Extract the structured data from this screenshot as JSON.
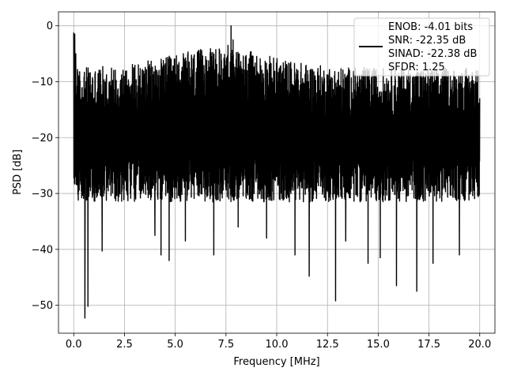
{
  "chart_data": {
    "type": "line",
    "title": "",
    "xlabel": "Frequency [MHz]",
    "ylabel": "PSD [dB]",
    "xlim": [
      -0.75,
      20.75
    ],
    "ylim": [
      -55,
      2.5
    ],
    "xticks": [
      0.0,
      2.5,
      5.0,
      7.5,
      10.0,
      12.5,
      15.0,
      17.5,
      20.0
    ],
    "xtick_labels": [
      "0.0",
      "2.5",
      "5.0",
      "7.5",
      "10.0",
      "12.5",
      "15.0",
      "17.5",
      "20.0"
    ],
    "yticks": [
      0,
      -10,
      -20,
      -30,
      -40,
      -50
    ],
    "ytick_labels": [
      "0",
      "−10",
      "−20",
      "−30",
      "−40",
      "−50"
    ],
    "grid": true,
    "legend_position": "top-right",
    "series": [
      {
        "color": "#000000",
        "legend_lines": [
          "ENOB: -4.01 bits",
          "SNR: -22.35 dB",
          "SINAD: -22.38 dB",
          "SFDR: 1.25"
        ],
        "x_range": [
          0,
          20
        ],
        "noise_floor_db": -20,
        "dips": [
          {
            "x": 0.55,
            "y": -52.3
          },
          {
            "x": 0.7,
            "y": -50.2
          },
          {
            "x": 1.4,
            "y": -40.3
          },
          {
            "x": 4.0,
            "y": -37.5
          },
          {
            "x": 4.7,
            "y": -42.0
          },
          {
            "x": 4.3,
            "y": -41.0
          },
          {
            "x": 5.5,
            "y": -38.5
          },
          {
            "x": 6.9,
            "y": -41.0
          },
          {
            "x": 8.1,
            "y": -36.0
          },
          {
            "x": 9.5,
            "y": -38.0
          },
          {
            "x": 10.9,
            "y": -41.0
          },
          {
            "x": 11.6,
            "y": -44.8
          },
          {
            "x": 12.9,
            "y": -49.2
          },
          {
            "x": 13.4,
            "y": -38.5
          },
          {
            "x": 14.5,
            "y": -42.5
          },
          {
            "x": 15.1,
            "y": -41.5
          },
          {
            "x": 15.9,
            "y": -46.5
          },
          {
            "x": 16.9,
            "y": -47.5
          },
          {
            "x": 17.7,
            "y": -42.5
          },
          {
            "x": 19.0,
            "y": -41.0
          }
        ],
        "peaks": [
          {
            "x": 0.0,
            "y": -1.2
          },
          {
            "x": 0.05,
            "y": -1.5
          },
          {
            "x": 0.1,
            "y": -5.0
          },
          {
            "x": 7.75,
            "y": 0.0
          },
          {
            "x": 7.85,
            "y": -2.5
          },
          {
            "x": 7.6,
            "y": -3.5
          },
          {
            "x": 6.5,
            "y": -5.5
          },
          {
            "x": 8.0,
            "y": -6.0
          }
        ]
      }
    ]
  }
}
